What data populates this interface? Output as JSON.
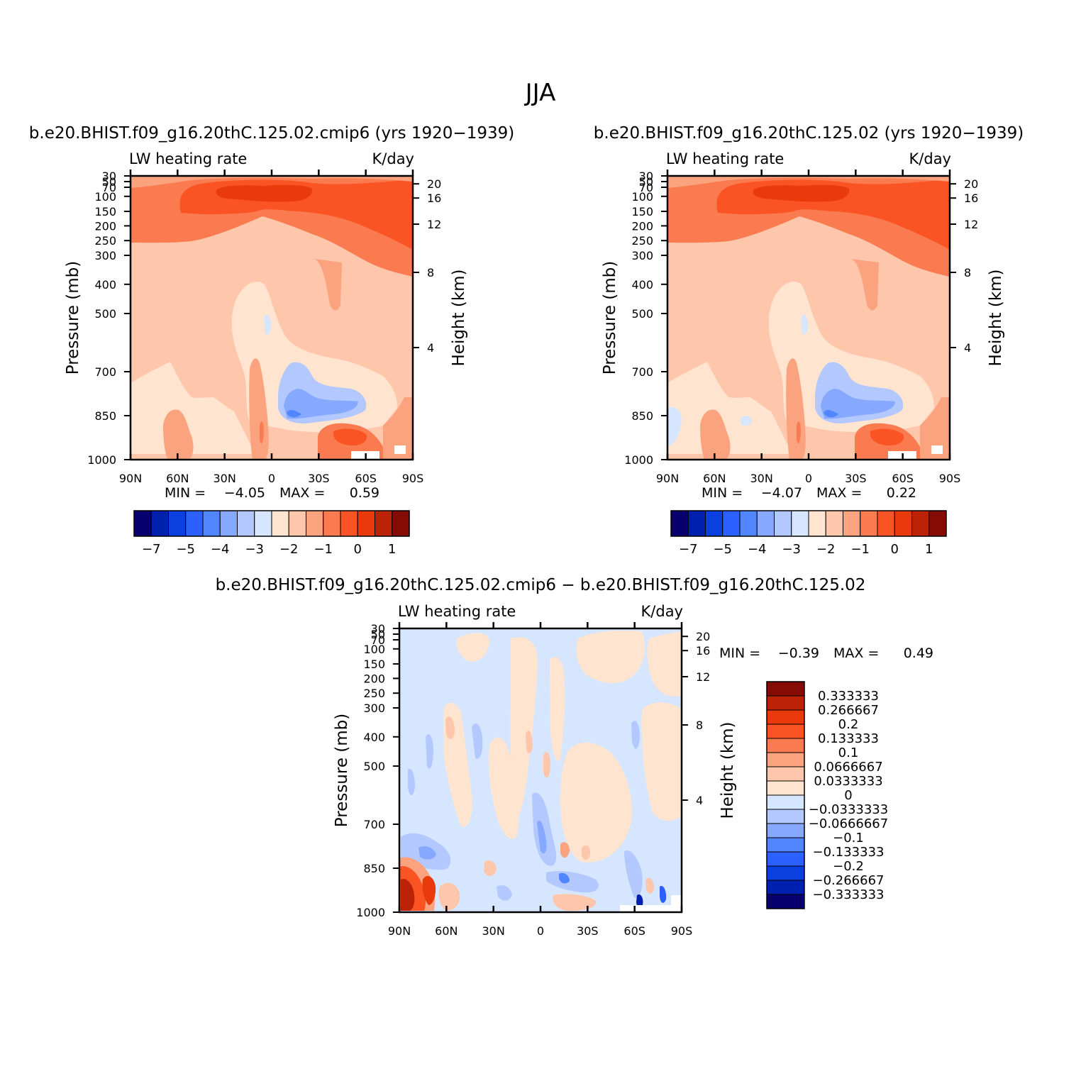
{
  "figure": {
    "title": "JJA"
  },
  "palette": {
    "labels_colors": [
      "#08006e",
      "#0021ad",
      "#0a3fe0",
      "#2b62ff",
      "#5286ff",
      "#86a9ff",
      "#b3c8ff",
      "#d6e6ff",
      "#ffe4d0",
      "#fec7ab",
      "#fba27e",
      "#fa7b50",
      "#fb5424",
      "#e83a0a",
      "#bc2306",
      "#850c04"
    ],
    "diff_colors": [
      "#850c04",
      "#bc2306",
      "#e83a0a",
      "#fb5424",
      "#fa7b50",
      "#fba27e",
      "#fec7ab",
      "#ffe4d0",
      "#d6e6ff",
      "#b3c8ff",
      "#86a9ff",
      "#5286ff",
      "#2b62ff",
      "#0a3fe0",
      "#0021ad",
      "#08006e"
    ]
  },
  "chart_data": [
    {
      "type": "heatmap",
      "title": "b.e20.BHIST.f09_g16.20thC.125.02.cmip6 (yrs 1920−1939)",
      "left_label": "LW heating rate",
      "right_label": "K/day",
      "ylabel": "Pressure (mb)",
      "y2label": "Height (km)",
      "x_ticks": [
        "90N",
        "60N",
        "30N",
        "0",
        "30S",
        "60S",
        "90S"
      ],
      "y_ticks": [
        "30",
        "50",
        "70",
        "100",
        "150",
        "200",
        "250",
        "300",
        "400",
        "500",
        "700",
        "850",
        "1000"
      ],
      "y2_ticks": [
        "20",
        "16",
        "12",
        "8",
        "4"
      ],
      "min_label": "MIN =",
      "min_value": "−4.05",
      "max_label": "MAX =",
      "max_value": "0.59",
      "colorbar_labels": [
        "−7",
        "−5",
        "−4",
        "−3",
        "−2",
        "−1",
        "0",
        "1"
      ]
    },
    {
      "type": "heatmap",
      "title": "b.e20.BHIST.f09_g16.20thC.125.02 (yrs 1920−1939)",
      "left_label": "LW heating rate",
      "right_label": "K/day",
      "ylabel": "Pressure (mb)",
      "y2label": "Height (km)",
      "x_ticks": [
        "90N",
        "60N",
        "30N",
        "0",
        "30S",
        "60S",
        "90S"
      ],
      "y_ticks": [
        "30",
        "50",
        "70",
        "100",
        "150",
        "200",
        "250",
        "300",
        "400",
        "500",
        "700",
        "850",
        "1000"
      ],
      "y2_ticks": [
        "20",
        "16",
        "12",
        "8",
        "4"
      ],
      "min_label": "MIN =",
      "min_value": "−4.07",
      "max_label": "MAX =",
      "max_value": "0.22",
      "colorbar_labels": [
        "−7",
        "−5",
        "−4",
        "−3",
        "−2",
        "−1",
        "0",
        "1"
      ]
    },
    {
      "type": "heatmap",
      "title": "b.e20.BHIST.f09_g16.20thC.125.02.cmip6 − b.e20.BHIST.f09_g16.20thC.125.02",
      "left_label": "LW heating rate",
      "right_label": "K/day",
      "ylabel": "Pressure (mb)",
      "y2label": "Height (km)",
      "x_ticks": [
        "90N",
        "60N",
        "30N",
        "0",
        "30S",
        "60S",
        "90S"
      ],
      "y_ticks": [
        "30",
        "50",
        "70",
        "100",
        "150",
        "200",
        "250",
        "300",
        "400",
        "500",
        "700",
        "850",
        "1000"
      ],
      "y2_ticks": [
        "20",
        "16",
        "12",
        "8",
        "4"
      ],
      "min_label": "MIN =",
      "min_value": "−0.39",
      "max_label": "MAX =",
      "max_value": "0.49",
      "colorbar_labels": [
        "0.333333",
        "0.266667",
        "0.2",
        "0.133333",
        "0.1",
        "0.0666667",
        "0.0333333",
        "0",
        "−0.0333333",
        "−0.0666667",
        "−0.1",
        "−0.133333",
        "−0.2",
        "−0.266667",
        "−0.333333"
      ]
    }
  ]
}
